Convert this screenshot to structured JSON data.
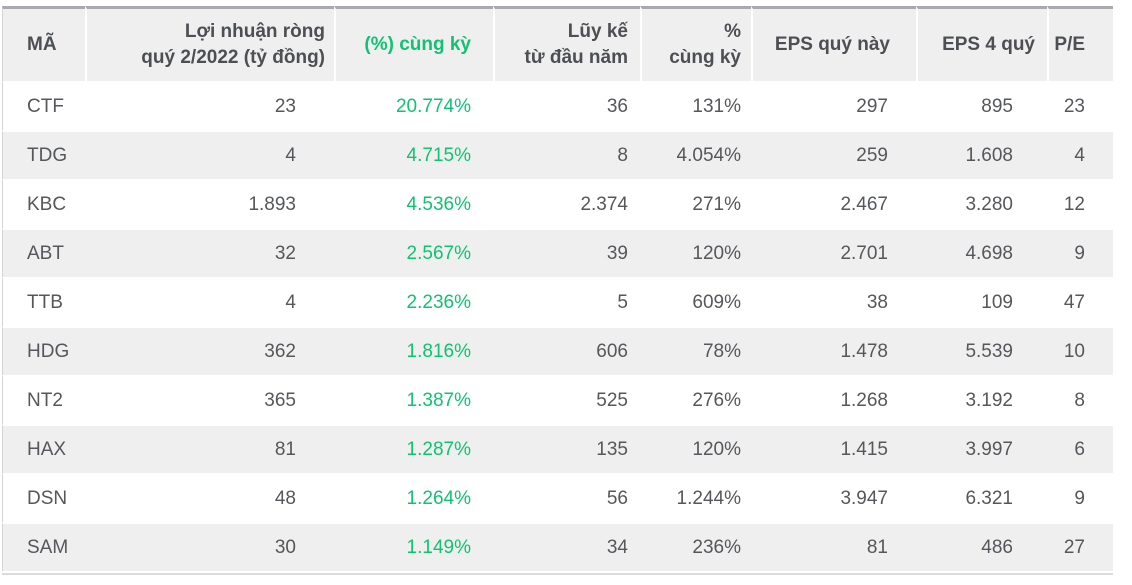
{
  "page": {
    "background": "#ffffff"
  },
  "chart_data": {
    "type": "table",
    "columns": [
      {
        "label": "MÃ",
        "lines": [
          "MÃ"
        ],
        "align": "left",
        "highlighted": false
      },
      {
        "label": "Lợi nhuận ròng quý 2/2022 (tỷ đồng)",
        "lines": [
          "Lợi nhuận ròng",
          "quý 2/2022 (tỷ đồng)"
        ],
        "align": "right",
        "highlighted": false
      },
      {
        "label": "(%) cùng kỳ",
        "lines": [
          "(%) cùng kỳ"
        ],
        "align": "right",
        "highlighted": true
      },
      {
        "label": "Lũy kế từ đầu năm",
        "lines": [
          "Lũy kế",
          "từ đầu năm"
        ],
        "align": "right",
        "highlighted": false
      },
      {
        "label": "% cùng kỳ",
        "lines": [
          "%",
          "cùng kỳ"
        ],
        "align": "right",
        "highlighted": false
      },
      {
        "label": "EPS quý này",
        "lines": [
          "EPS quý này"
        ],
        "align": "right",
        "highlighted": false
      },
      {
        "label": "EPS 4 quý",
        "lines": [
          "EPS 4 quý"
        ],
        "align": "right",
        "highlighted": false
      },
      {
        "label": "P/E",
        "lines": [
          "P/E"
        ],
        "align": "right",
        "highlighted": false
      }
    ],
    "rows": [
      [
        "CTF",
        "23",
        "20.774%",
        "36",
        "131%",
        "297",
        "895",
        "23"
      ],
      [
        "TDG",
        "4",
        "4.715%",
        "8",
        "4.054%",
        "259",
        "1.608",
        "4"
      ],
      [
        "KBC",
        "1.893",
        "4.536%",
        "2.374",
        "271%",
        "2.467",
        "3.280",
        "12"
      ],
      [
        "ABT",
        "32",
        "2.567%",
        "39",
        "120%",
        "2.701",
        "4.698",
        "9"
      ],
      [
        "TTB",
        "4",
        "2.236%",
        "5",
        "609%",
        "38",
        "109",
        "47"
      ],
      [
        "HDG",
        "362",
        "1.816%",
        "606",
        "78%",
        "1.478",
        "5.539",
        "10"
      ],
      [
        "NT2",
        "365",
        "1.387%",
        "525",
        "276%",
        "1.268",
        "3.192",
        "8"
      ],
      [
        "HAX",
        "81",
        "1.287%",
        "135",
        "120%",
        "1.415",
        "3.997",
        "6"
      ],
      [
        "DSN",
        "48",
        "1.264%",
        "56",
        "1.244%",
        "3.947",
        "6.321",
        "9"
      ],
      [
        "SAM",
        "30",
        "1.149%",
        "34",
        "236%",
        "81",
        "486",
        "27"
      ]
    ],
    "highlighted_column": "(%) cùng kỳ",
    "layout": {
      "striped": true,
      "grid": "none",
      "header_position": "top"
    },
    "colors": {
      "accent_green": "#12c173",
      "header_text": "#4d4f53",
      "body_text": "#55575a",
      "row_alt_background": "#efefef",
      "header_background": "#efefef",
      "header_top_border": "#a8aaad",
      "edge_border": "#d2d4d5"
    }
  }
}
